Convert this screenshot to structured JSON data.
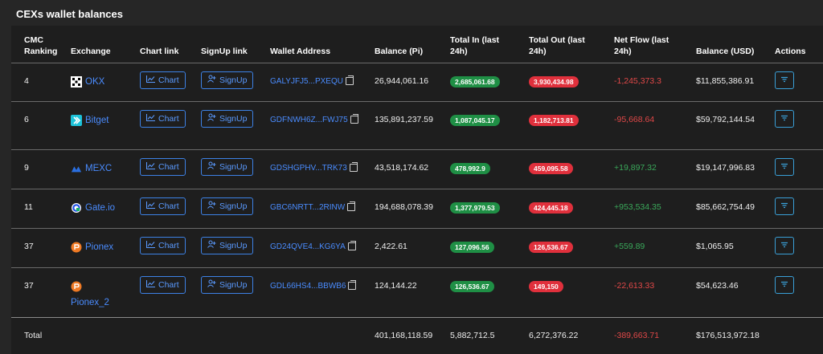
{
  "title": "CEXs wallet balances",
  "columns": {
    "rank_line1": "CMC",
    "rank_line2": "Ranking",
    "exchange": "Exchange",
    "chart": "Chart link",
    "signup": "SignUp link",
    "wallet": "Wallet Address",
    "balance_pi": "Balance (Pi)",
    "total_in_line1": "Total In (last",
    "total_in_line2": "24h)",
    "total_out_line1": "Total Out (last",
    "total_out_line2": "24h)",
    "net_flow_line1": "Net Flow (last",
    "net_flow_line2": "24h)",
    "balance_usd": "Balance (USD)",
    "actions": "Actions"
  },
  "buttons": {
    "chart": "Chart",
    "signup": "SignUp"
  },
  "colors": {
    "positive": "#3aa85a",
    "negative": "#e04848",
    "link": "#4a8cff"
  },
  "rows": [
    {
      "rank": "4",
      "exchange": "OKX",
      "logo": "okx-logo",
      "wallet": "GALYJFJ5...PXEQU",
      "balance_pi": "26,944,061.16",
      "total_in": "2,685,061.68",
      "total_out": "3,930,434.98",
      "net_flow": "-1,245,373.3",
      "balance_usd": "$11,855,386.91"
    },
    {
      "rank": "6",
      "exchange": "Bitget",
      "logo": "bitget-logo",
      "wallet": "GDFNWH6Z...FWJ75",
      "balance_pi": "135,891,237.59",
      "total_in": "1,087,045.17",
      "total_out": "1,182,713.81",
      "net_flow": "-95,668.64",
      "balance_usd": "$59,792,144.54"
    },
    {
      "rank": "9",
      "exchange": "MEXC",
      "logo": "mexc-logo",
      "wallet": "GDSHGPHV...TRK73",
      "balance_pi": "43,518,174.62",
      "total_in": "478,992.9",
      "total_out": "459,095.58",
      "net_flow": "+19,897.32",
      "balance_usd": "$19,147,996.83"
    },
    {
      "rank": "11",
      "exchange": "Gate.io",
      "logo": "gateio-logo",
      "wallet": "GBC6NRTT...2RINW",
      "balance_pi": "194,688,078.39",
      "total_in": "1,377,979.53",
      "total_out": "424,445.18",
      "net_flow": "+953,534.35",
      "balance_usd": "$85,662,754.49"
    },
    {
      "rank": "37",
      "exchange": "Pionex",
      "logo": "pionex-logo",
      "wallet": "GD24QVE4...KG6YA",
      "balance_pi": "2,422.61",
      "total_in": "127,096.56",
      "total_out": "126,536.67",
      "net_flow": "+559.89",
      "balance_usd": "$1,065.95"
    },
    {
      "rank": "37",
      "exchange": "Pionex_2",
      "logo": "pionex-logo",
      "wallet": "GDL66HS4...BBWB6",
      "balance_pi": "124,144.22",
      "total_in": "126,536.67",
      "total_out": "149,150",
      "net_flow": "-22,613.33",
      "balance_usd": "$54,623.46"
    }
  ],
  "total": {
    "label": "Total",
    "balance_pi": "401,168,118.59",
    "total_in": "5,882,712.5",
    "total_out": "6,272,376.22",
    "net_flow": "-389,663.71",
    "balance_usd": "$176,513,972.18"
  }
}
